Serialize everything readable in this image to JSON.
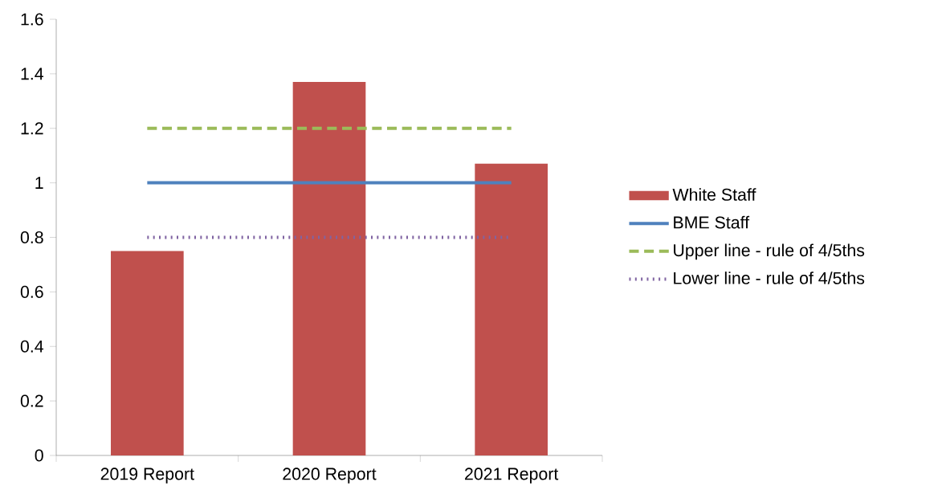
{
  "chart_data": {
    "type": "bar",
    "categories": [
      "2019 Report",
      "2020 Report",
      "2021 Report"
    ],
    "series": [
      {
        "name": "White Staff",
        "color": "#c0504d",
        "values": [
          0.75,
          1.37,
          1.07
        ]
      },
      {
        "name": "BME Staff",
        "type": "line",
        "color": "#4f81bd",
        "line_style": "solid",
        "values": [
          1,
          1,
          1
        ]
      },
      {
        "name": "Upper line - rule of 4/5ths",
        "type": "line",
        "color": "#9bbb59",
        "line_style": "dashed",
        "values": [
          1.2,
          1.2,
          1.2
        ]
      },
      {
        "name": "Lower line - rule of 4/5ths",
        "type": "line",
        "color": "#8064a2",
        "line_style": "dotted",
        "values": [
          0.8,
          0.8,
          0.8
        ]
      }
    ],
    "ylim": [
      0,
      1.6
    ],
    "yticks": [
      0,
      0.2,
      0.4,
      0.6,
      0.8,
      1,
      1.2,
      1.4,
      1.6
    ],
    "grid": false,
    "legend": "right",
    "marker": "none"
  }
}
